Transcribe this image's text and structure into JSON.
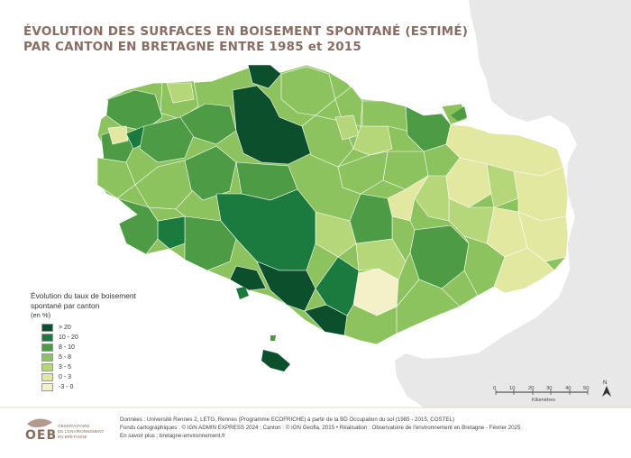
{
  "title": {
    "line1": "ÉVOLUTION DES SURFACES EN BOISEMENT SPONTANÉ (ESTIMÉ)",
    "line2": "PAR CANTON EN BRETAGNE ENTRE 1985 et 2015"
  },
  "legend": {
    "title": "Évolution du taux de boisement spontané par canton",
    "unit": "(en %)",
    "items": [
      {
        "label": "> 20",
        "color": "#0b4f2c"
      },
      {
        "label": "10 - 20",
        "color": "#1b7a3d"
      },
      {
        "label": "8 - 10",
        "color": "#4d9c45"
      },
      {
        "label": "5 - 8",
        "color": "#8dc35f"
      },
      {
        "label": "3 - 5",
        "color": "#b6d67a"
      },
      {
        "label": "0 - 3",
        "color": "#e2e8a0"
      },
      {
        "label": "-3 - 0",
        "color": "#f4f1c8"
      }
    ]
  },
  "scale": {
    "ticks": [
      "0",
      "10",
      "20",
      "30",
      "40",
      "50"
    ],
    "unit": "Kilomètres"
  },
  "north": "N",
  "footer": {
    "line1": "Données : Université Rennes 2, LETG, Rennes (Programme ECOFRICHE) à partir de la BD Occupation du sol (1985 - 2015, COSTEL)",
    "line2": "Fonds cartographiques : © IGN ADMIN EXPRESS 2024 ; Canton : © IGN Geofla, 2015 • Réalisation : Observatoire de l'environnement en Bretagne - Février 2025",
    "line3": "En savoir plus : bretagne-environnement.fr"
  },
  "logo": {
    "name": "OEB",
    "sub1": "OBSERVATOIRE",
    "sub2": "DE L'ENVIRONNEMENT",
    "sub3": "EN BRETAGNE"
  },
  "colors": {
    "neighbor": "#e8e8e8",
    "background": "#ffffff",
    "title": "#8a6d62"
  }
}
